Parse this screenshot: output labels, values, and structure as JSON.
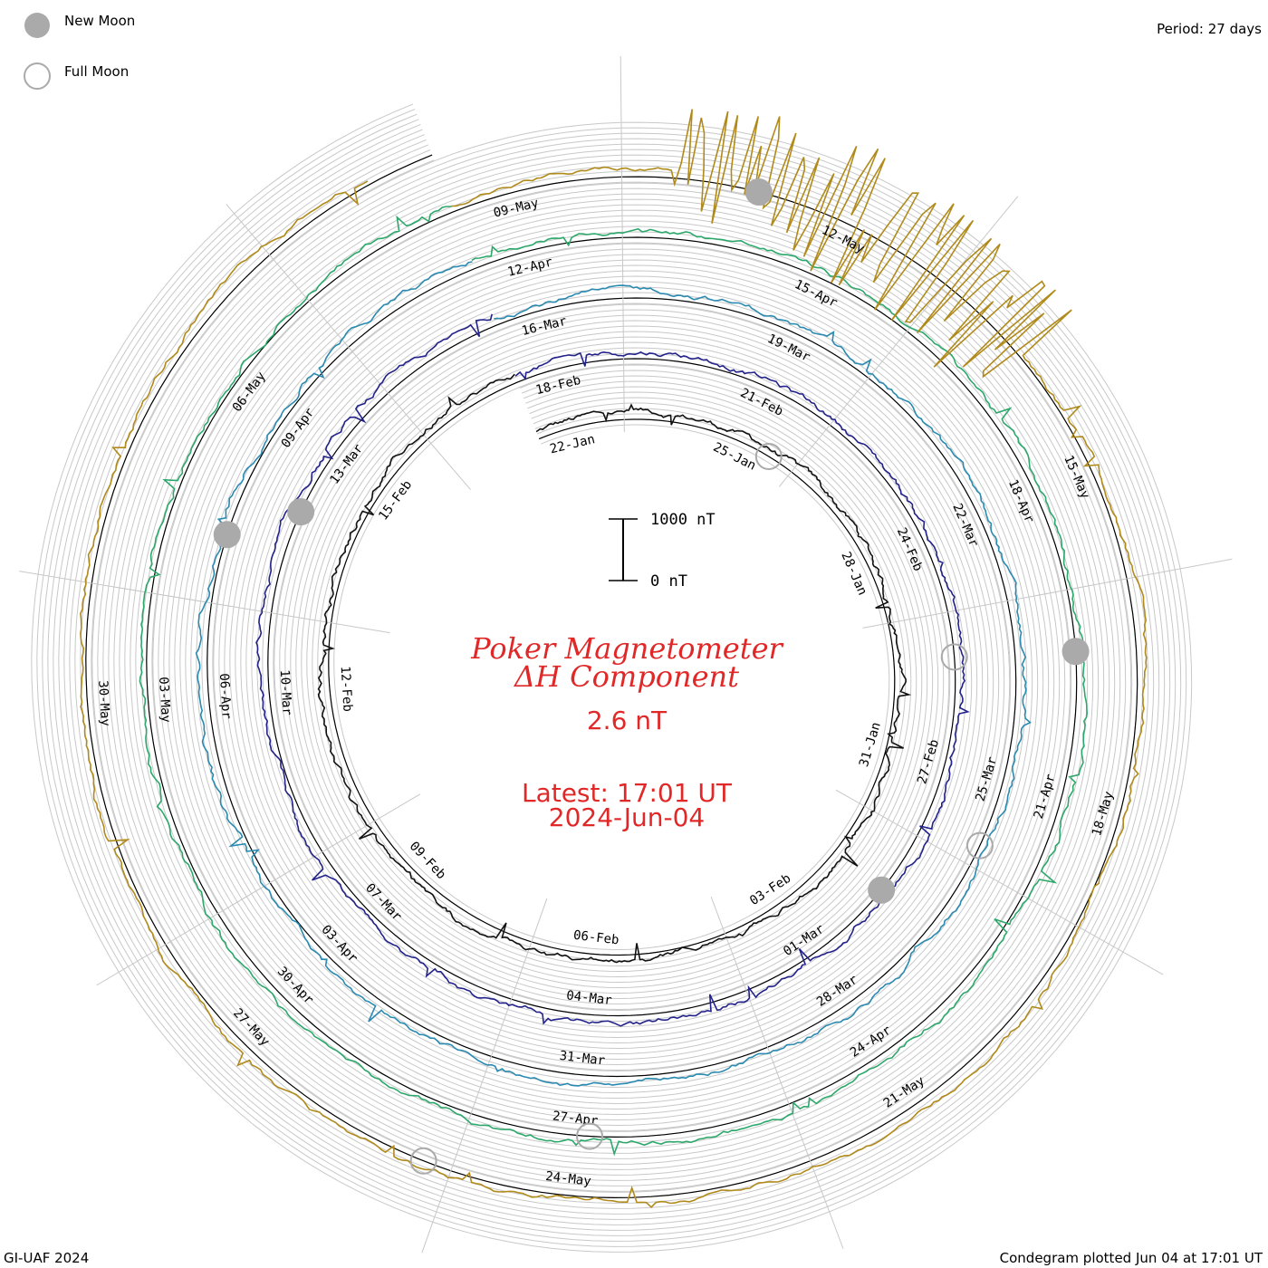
{
  "legend": {
    "new_moon": "New Moon",
    "full_moon": "Full Moon"
  },
  "period_label": "Period: 27 days",
  "footer_left": "GI-UAF 2024",
  "footer_right": "Condegram plotted Jun 04 at 17:01 UT",
  "scale": {
    "top": "1000 nT",
    "bottom": "0 nT"
  },
  "title": {
    "line1": "Poker Magnetometer",
    "line2": "ΔH Component",
    "value": "2.6 nT",
    "latest": "Latest: 17:01 UT",
    "date": "2024-Jun-04"
  },
  "chart_data": {
    "type": "line",
    "description_free": true,
    "period_days": 27,
    "scale_nT": [
      0,
      1000
    ],
    "rotations": [
      {
        "start": "22-Jan",
        "color": "#111111",
        "dates": [
          "22-Jan",
          "25-Jan",
          "28-Jan",
          "31-Jan",
          "03-Feb",
          "06-Feb",
          "09-Feb",
          "12-Feb",
          "15-Feb"
        ]
      },
      {
        "start": "18-Feb",
        "color": "#22228a",
        "dates": [
          "18-Feb",
          "21-Feb",
          "24-Feb",
          "27-Feb",
          "01-Mar",
          "04-Mar",
          "07-Mar",
          "10-Mar",
          "13-Mar"
        ]
      },
      {
        "start": "16-Mar",
        "color": "#2a8ab0",
        "dates": [
          "16-Mar",
          "19-Mar",
          "22-Mar",
          "25-Mar",
          "28-Mar",
          "31-Mar",
          "03-Apr",
          "06-Apr",
          "09-Apr"
        ]
      },
      {
        "start": "12-Apr",
        "color": "#2ca86a",
        "dates": [
          "12-Apr",
          "15-Apr",
          "18-Apr",
          "21-Apr",
          "24-Apr",
          "27-Apr",
          "30-Apr",
          "03-May",
          "06-May"
        ]
      },
      {
        "start": "09-May",
        "color": "#b08a1a",
        "dates": [
          "09-May",
          "12-May",
          "15-May",
          "18-May",
          "21-May",
          "24-May",
          "27-May",
          "30-May"
        ]
      }
    ]
  }
}
